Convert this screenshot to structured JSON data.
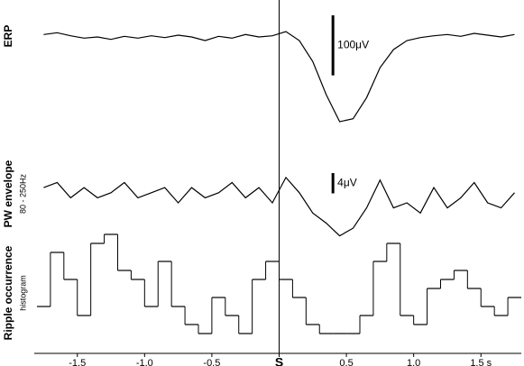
{
  "chart_data": {
    "type": "stacked-traces",
    "x": [
      -1.75,
      -1.65,
      -1.55,
      -1.45,
      -1.35,
      -1.25,
      -1.15,
      -1.05,
      -0.95,
      -0.85,
      -0.75,
      -0.65,
      -0.55,
      -0.45,
      -0.35,
      -0.25,
      -0.15,
      -0.05,
      0.05,
      0.15,
      0.25,
      0.35,
      0.45,
      0.55,
      0.65,
      0.75,
      0.85,
      0.95,
      1.05,
      1.15,
      1.25,
      1.35,
      1.45,
      1.55,
      1.65,
      1.75
    ],
    "xlim": [
      -1.82,
      1.8
    ],
    "xticks": [
      -1.5,
      {
        "value": -1,
        "label": "-1.0"
      },
      -0.5,
      {
        "value": 0,
        "label": "S"
      },
      0.5,
      {
        "value": 1,
        "label": "1.0"
      },
      {
        "value": 1.5,
        "label": "1.5 s"
      }
    ],
    "color": "#000000",
    "series": [
      {
        "name": "ERP",
        "type": "line",
        "ylim": [
          -160,
          50
        ],
        "scale_bar": {
          "value": 100,
          "label": "100μV"
        },
        "values": [
          0,
          3,
          -2,
          -6,
          -4,
          -8,
          -3,
          -6,
          -2,
          -5,
          -1,
          -4,
          -10,
          -3,
          -6,
          0,
          -4,
          -2,
          5,
          -10,
          -45,
          -100,
          -145,
          -140,
          -105,
          -55,
          -25,
          -10,
          -5,
          -2,
          0,
          -3,
          2,
          -1,
          -4,
          0
        ]
      },
      {
        "name": "PW envelope",
        "sublabel": "80 - 250Hz",
        "type": "line",
        "ylim": [
          -10,
          6
        ],
        "scale_bar": {
          "value": 4,
          "label": "4μV"
        },
        "values": [
          1,
          2,
          -1,
          1,
          -1,
          0,
          2,
          -1,
          0,
          1,
          -2,
          1,
          -1,
          0,
          2,
          -1,
          1,
          -2,
          3,
          0,
          -4,
          -6,
          -8.5,
          -7,
          -3,
          2.5,
          -3,
          -2,
          -4,
          1,
          -3,
          -1,
          2,
          -2,
          -3,
          0
        ]
      },
      {
        "name": "Ripple occurrence",
        "sublabel": "histogram",
        "type": "step",
        "ylim": [
          0,
          12
        ],
        "values": [
          3,
          9,
          6,
          2,
          10,
          11,
          7,
          6,
          3,
          8,
          3,
          1,
          0,
          4,
          2,
          0,
          6,
          8,
          6,
          4,
          1,
          0,
          0,
          0,
          2,
          8,
          10,
          2,
          1,
          5,
          6,
          7,
          5,
          3,
          2,
          4
        ]
      }
    ]
  }
}
